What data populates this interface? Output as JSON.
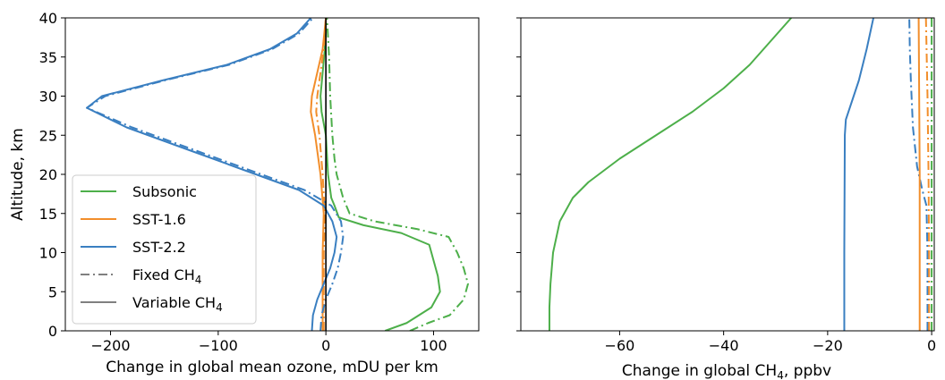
{
  "chart_data": [
    {
      "type": "line",
      "xlabel": "Change in global mean ozone, mDU per km",
      "ylabel": "Altitude, km",
      "xlim": [
        -242,
        142
      ],
      "ylim": [
        0,
        40
      ],
      "xticks": [
        -200,
        -100,
        0,
        100
      ],
      "xtick_labels": [
        "−200",
        "−100",
        "0",
        "100"
      ],
      "yticks": [
        0,
        5,
        10,
        15,
        20,
        25,
        30,
        35,
        40
      ],
      "ytick_labels": [
        "0",
        "5",
        "10",
        "15",
        "20",
        "25",
        "30",
        "35",
        "40"
      ],
      "vline_x": 0,
      "grid": false,
      "legend_position": "lower-left",
      "legend": [
        {
          "label": "Subsonic",
          "color": "#4daf4a",
          "style": "solid"
        },
        {
          "label": "SST-1.6",
          "color": "#f28e2b",
          "style": "solid"
        },
        {
          "label": "SST-2.2",
          "color": "#3a7fc1",
          "style": "solid"
        },
        {
          "label": "Fixed CH",
          "sub": "4",
          "color": "#808080",
          "style": "dashdot"
        },
        {
          "label": "Variable CH",
          "sub": "4",
          "color": "#808080",
          "style": "solid"
        }
      ],
      "series": [
        {
          "name": "Subsonic",
          "variant": "Fixed CH4",
          "color": "#4daf4a",
          "style": "dashdot",
          "points": [
            [
              78,
              0
            ],
            [
              95,
              1
            ],
            [
              115,
              2
            ],
            [
              128,
              4
            ],
            [
              132,
              6
            ],
            [
              128,
              8
            ],
            [
              122,
              10
            ],
            [
              114,
              12
            ],
            [
              85,
              13
            ],
            [
              45,
              14
            ],
            [
              22,
              15
            ],
            [
              16,
              17
            ],
            [
              10,
              20
            ],
            [
              8,
              22
            ],
            [
              6,
              25
            ],
            [
              4,
              30
            ],
            [
              3,
              35
            ],
            [
              1,
              40
            ]
          ]
        },
        {
          "name": "Subsonic",
          "variant": "Variable CH4",
          "color": "#4daf4a",
          "style": "solid",
          "points": [
            [
              55,
              0
            ],
            [
              75,
              1
            ],
            [
              98,
              3
            ],
            [
              106,
              5
            ],
            [
              104,
              7
            ],
            [
              100,
              9
            ],
            [
              96,
              11
            ],
            [
              70,
              12.5
            ],
            [
              35,
              13.5
            ],
            [
              12,
              14.5
            ],
            [
              8,
              16
            ],
            [
              5,
              17
            ],
            [
              2,
              20
            ],
            [
              0,
              25
            ],
            [
              -4,
              28
            ],
            [
              -5,
              30
            ],
            [
              -3,
              33
            ],
            [
              -1,
              36
            ],
            [
              0,
              40
            ]
          ]
        },
        {
          "name": "SST-1.6",
          "variant": "Fixed CH4",
          "color": "#f28e2b",
          "style": "dashdot",
          "points": [
            [
              -2,
              0
            ],
            [
              -2,
              5
            ],
            [
              -2,
              10
            ],
            [
              -1,
              15
            ],
            [
              -3,
              20
            ],
            [
              -6,
              25
            ],
            [
              -9,
              28
            ],
            [
              -8,
              30
            ],
            [
              -5,
              33
            ],
            [
              -2,
              36
            ],
            [
              0,
              40
            ]
          ]
        },
        {
          "name": "SST-1.6",
          "variant": "Variable CH4",
          "color": "#f28e2b",
          "style": "solid",
          "points": [
            [
              -3,
              0
            ],
            [
              -3,
              5
            ],
            [
              -3,
              10
            ],
            [
              -2,
              15
            ],
            [
              -5,
              20
            ],
            [
              -10,
              25
            ],
            [
              -14,
              28
            ],
            [
              -13,
              30
            ],
            [
              -8,
              33
            ],
            [
              -3,
              36
            ],
            [
              0,
              40
            ]
          ]
        },
        {
          "name": "SST-2.2",
          "variant": "Fixed CH4",
          "color": "#3a7fc1",
          "style": "dashdot",
          "points": [
            [
              -5,
              0
            ],
            [
              -4,
              2
            ],
            [
              0,
              4
            ],
            [
              6,
              6
            ],
            [
              11,
              8
            ],
            [
              14,
              10
            ],
            [
              16,
              12
            ],
            [
              14,
              14
            ],
            [
              5,
              16
            ],
            [
              -20,
              18
            ],
            [
              -60,
              20
            ],
            [
              -120,
              23
            ],
            [
              -180,
              26
            ],
            [
              -222,
              28.5
            ],
            [
              -205,
              30
            ],
            [
              -150,
              32
            ],
            [
              -90,
              34
            ],
            [
              -50,
              36
            ],
            [
              -25,
              38
            ],
            [
              -12,
              40
            ]
          ]
        },
        {
          "name": "SST-2.2",
          "variant": "Variable CH4",
          "color": "#3a7fc1",
          "style": "solid",
          "points": [
            [
              -13,
              0
            ],
            [
              -12,
              2
            ],
            [
              -8,
              4
            ],
            [
              -2,
              6
            ],
            [
              4,
              8
            ],
            [
              8,
              10
            ],
            [
              10,
              12
            ],
            [
              6,
              14
            ],
            [
              -2,
              16
            ],
            [
              -25,
              18
            ],
            [
              -65,
              20
            ],
            [
              -125,
              23
            ],
            [
              -185,
              26
            ],
            [
              -222,
              28.5
            ],
            [
              -208,
              30
            ],
            [
              -152,
              32
            ],
            [
              -92,
              34
            ],
            [
              -52,
              36
            ],
            [
              -27,
              38
            ],
            [
              -14,
              40
            ]
          ]
        }
      ]
    },
    {
      "type": "line",
      "xlabel": "Change in global CH",
      "xlabel_sub": "4",
      "xlabel_suffix": ", ppbv",
      "xlim": [
        -79,
        0.5
      ],
      "ylim": [
        0,
        40
      ],
      "xticks": [
        -60,
        -40,
        -20,
        0
      ],
      "xtick_labels": [
        "−60",
        "−40",
        "−20",
        "0"
      ],
      "yticks": [
        0,
        5,
        10,
        15,
        20,
        25,
        30,
        35,
        40
      ],
      "grid": false,
      "series": [
        {
          "name": "Subsonic",
          "variant": "Variable CH4",
          "color": "#4daf4a",
          "style": "solid",
          "points": [
            [
              -73.5,
              0
            ],
            [
              -73.5,
              3
            ],
            [
              -73.3,
              6
            ],
            [
              -72.8,
              10
            ],
            [
              -71.5,
              14
            ],
            [
              -69,
              17
            ],
            [
              -66,
              19
            ],
            [
              -60,
              22
            ],
            [
              -53,
              25
            ],
            [
              -46,
              28
            ],
            [
              -40,
              31
            ],
            [
              -35,
              34
            ],
            [
              -31,
              37
            ],
            [
              -27,
              40
            ]
          ]
        },
        {
          "name": "SST-2.2",
          "variant": "Variable CH4",
          "color": "#3a7fc1",
          "style": "solid",
          "points": [
            [
              -16.8,
              0
            ],
            [
              -16.8,
              10
            ],
            [
              -16.7,
              25
            ],
            [
              -16.5,
              27
            ],
            [
              -15.5,
              29
            ],
            [
              -14,
              32
            ],
            [
              -12.5,
              36
            ],
            [
              -11.2,
              40
            ]
          ]
        },
        {
          "name": "SST-2.2",
          "variant": "Fixed CH4",
          "color": "#3a7fc1",
          "style": "dashdot",
          "points": [
            [
              -0.8,
              0
            ],
            [
              -0.8,
              10
            ],
            [
              -1.0,
              16
            ],
            [
              -1.8,
              18
            ],
            [
              -2.8,
              21
            ],
            [
              -3.6,
              26
            ],
            [
              -4.0,
              32
            ],
            [
              -4.2,
              36
            ],
            [
              -4.3,
              40
            ]
          ]
        },
        {
          "name": "SST-1.6",
          "variant": "Variable CH4",
          "color": "#f28e2b",
          "style": "solid",
          "points": [
            [
              -2.3,
              0
            ],
            [
              -2.3,
              10
            ],
            [
              -2.3,
              20
            ],
            [
              -2.4,
              30
            ],
            [
              -2.5,
              40
            ]
          ]
        },
        {
          "name": "SST-1.6",
          "variant": "Fixed CH4",
          "color": "#f28e2b",
          "style": "dashdot",
          "points": [
            [
              -0.5,
              0
            ],
            [
              -0.5,
              10
            ],
            [
              -0.6,
              20
            ],
            [
              -0.8,
              30
            ],
            [
              -1.1,
              40
            ]
          ]
        },
        {
          "name": "Subsonic",
          "variant": "Fixed CH4",
          "color": "#4daf4a",
          "style": "dashdot",
          "points": [
            [
              0,
              0
            ],
            [
              0,
              40
            ]
          ]
        }
      ]
    }
  ]
}
